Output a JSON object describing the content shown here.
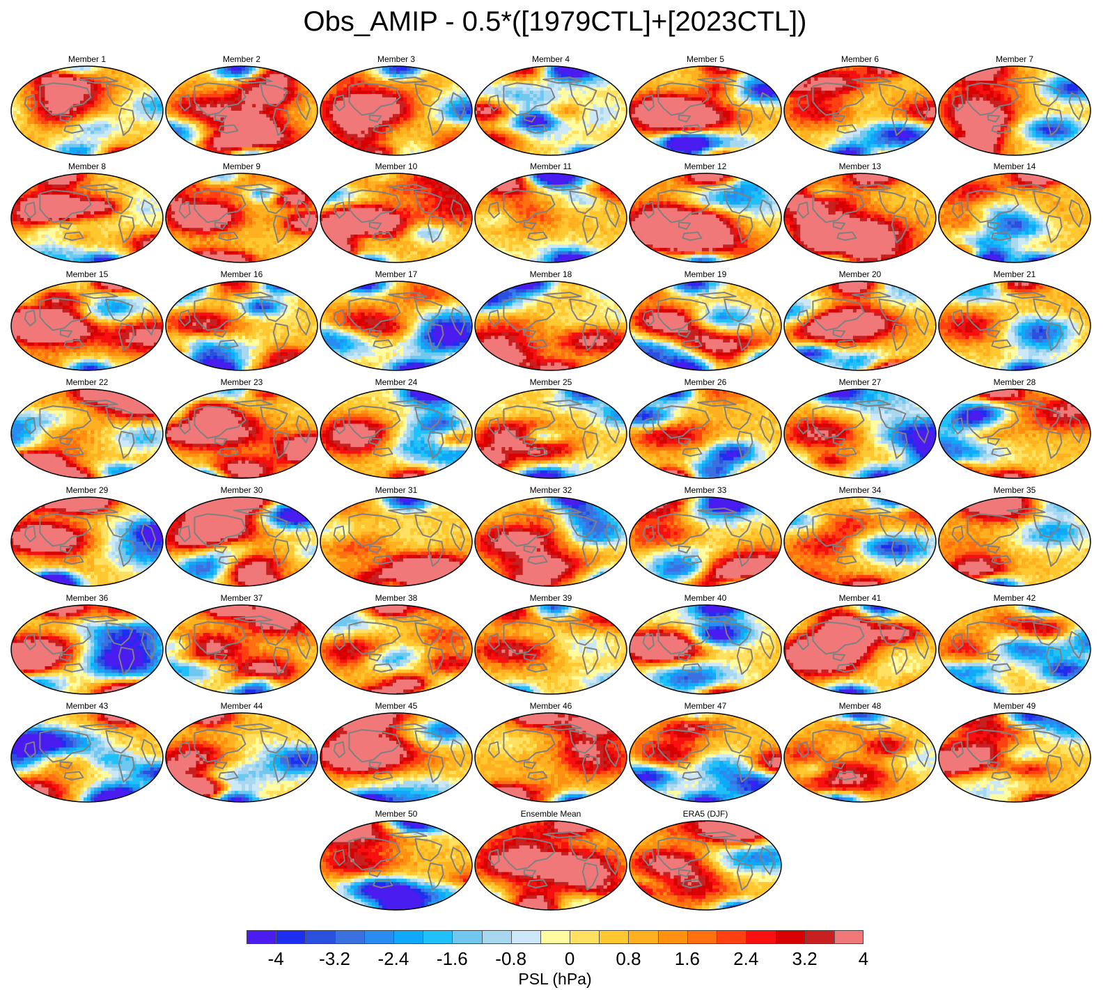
{
  "title": "Obs_AMIP - 0.5*([1979CTL]+[2023CTL])",
  "panels": [
    "Member 1",
    "Member 2",
    "Member 3",
    "Member 4",
    "Member 5",
    "Member 6",
    "Member 7",
    "Member 8",
    "Member 9",
    "Member 10",
    "Member 11",
    "Member 12",
    "Member 13",
    "Member 14",
    "Member 15",
    "Member 16",
    "Member 17",
    "Member 18",
    "Member 19",
    "Member 20",
    "Member 21",
    "Member 22",
    "Member 23",
    "Member 24",
    "Member 25",
    "Member 26",
    "Member 27",
    "Member 28",
    "Member 29",
    "Member 30",
    "Member 31",
    "Member 32",
    "Member 33",
    "Member 34",
    "Member 35",
    "Member 36",
    "Member 37",
    "Member 38",
    "Member 39",
    "Member 40",
    "Member 41",
    "Member 42",
    "Member 43",
    "Member 44",
    "Member 45",
    "Member 46",
    "Member 47",
    "Member 48",
    "Member 49",
    "Member 50",
    "Ensemble Mean",
    "ERA5 (DJF)"
  ],
  "colorbar": {
    "label": "PSL (hPa)",
    "tick_labels": [
      "-4",
      "-3.2",
      "-2.4",
      "-1.6",
      "-0.8",
      "0",
      "0.8",
      "1.6",
      "2.4",
      "3.2",
      "4"
    ],
    "tick_values": [
      -4,
      -3.2,
      -2.4,
      -1.6,
      -0.8,
      0,
      0.8,
      1.6,
      2.4,
      3.2,
      4
    ],
    "levels_min": -4.4,
    "levels_step": 0.4,
    "colors": [
      "#4a1cf0",
      "#1e2ef0",
      "#2b50e0",
      "#3a70e0",
      "#2a8cf0",
      "#10a8f8",
      "#20c0f8",
      "#70c8f0",
      "#a8d8f0",
      "#cce8f8",
      "#fffca0",
      "#ffe060",
      "#ffc830",
      "#ffb020",
      "#ff9010",
      "#ff7010",
      "#ff4010",
      "#f81010",
      "#d80000",
      "#c82020",
      "#f07878"
    ]
  },
  "map_style": {
    "coast_color": "#808080",
    "ocean_base": "#cce8f8",
    "outline_color": "#000000"
  }
}
